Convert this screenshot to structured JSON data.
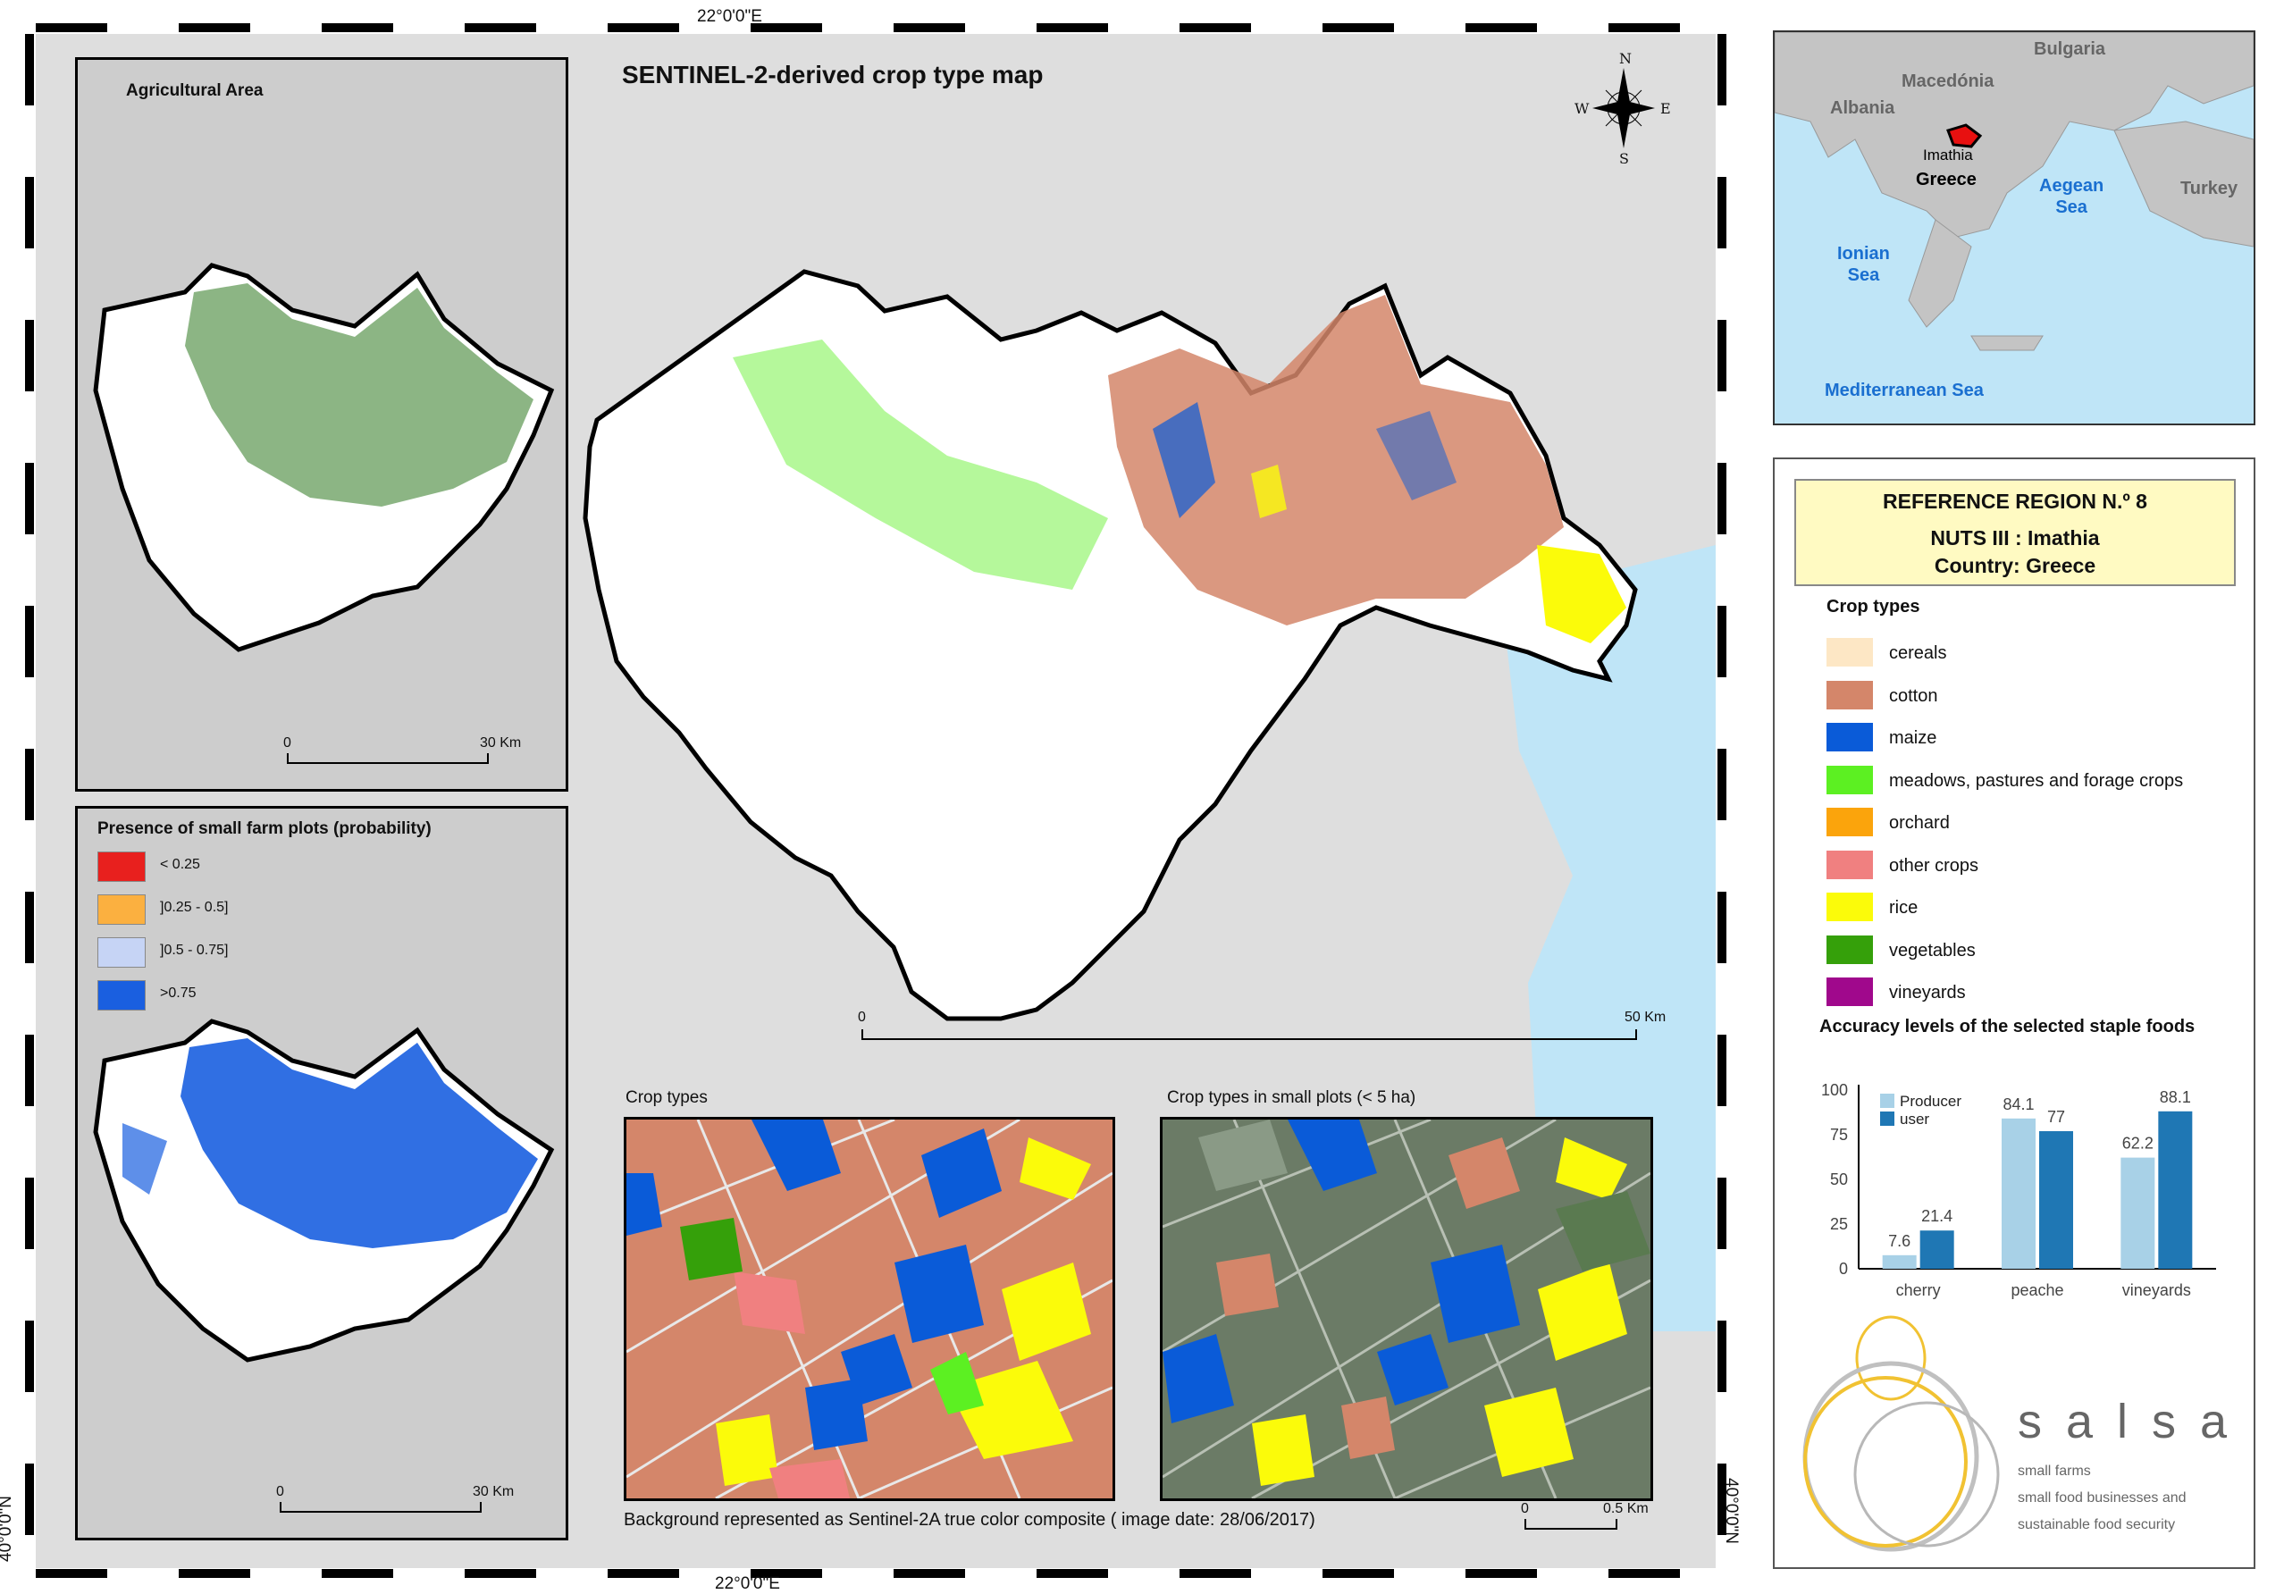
{
  "coords": {
    "top_lon": "22°0'0\"E",
    "bottom_lon": "22°0'0\"E",
    "left_lat": "40°0'0\"N",
    "right_lat": "40°0'0\"N"
  },
  "main_map": {
    "title": "SENTINEL-2-derived crop type map",
    "scale_start": "0",
    "scale_end": "50 Km"
  },
  "compass": {
    "n": "N",
    "s": "S",
    "e": "E",
    "w": "W"
  },
  "agri_panel": {
    "title": "Agricultural Area",
    "scale_start": "0",
    "scale_end": "30 Km"
  },
  "prob_panel": {
    "title": "Presence of small farm plots (probability)",
    "legend": [
      {
        "label": "< 0.25",
        "color": "#e8201e"
      },
      {
        "label": "]0.25 - 0.5]",
        "color": "#fbb040"
      },
      {
        "label": "]0.5 - 0.75]",
        "color": "#c6d4f5"
      },
      {
        "label": ">0.75",
        "color": "#1a5fe0"
      }
    ],
    "scale_start": "0",
    "scale_end": "30 Km"
  },
  "insets": {
    "left_title": "Crop types",
    "right_title": "Crop types in small plots (< 5 ha)",
    "footnote": "Background represented as Sentinel-2A true color composite ( image date: 28/06/2017)",
    "scale_start": "0",
    "scale_end": "0.5 Km"
  },
  "locator": {
    "bulgaria": "Bulgaria",
    "macedonia": "Macedónia",
    "albania": "Albania",
    "imathia": "Imathia",
    "greece": "Greece",
    "aegean": "Aegean\nSea",
    "turkey": "Turkey",
    "ionian": "Ionian\nSea",
    "med": "Mediterranean Sea"
  },
  "legend_box": {
    "line1": "REFERENCE REGION N.º 8",
    "line2": "NUTS III : Imathia",
    "line3": "Country: Greece"
  },
  "crop_types": {
    "title": "Crop types",
    "items": [
      {
        "label": "cereals",
        "color": "#fde7c5"
      },
      {
        "label": "cotton",
        "color": "#d4866a"
      },
      {
        "label": "maize",
        "color": "#0a5bd8"
      },
      {
        "label": "meadows, pastures and forage crops",
        "color": "#5cf022"
      },
      {
        "label": "orchard",
        "color": "#fba40c"
      },
      {
        "label": "other crops",
        "color": "#f08080"
      },
      {
        "label": "rice",
        "color": "#fbfb0a"
      },
      {
        "label": "vegetables",
        "color": "#35a00a"
      },
      {
        "label": "vineyards",
        "color": "#a0088c"
      }
    ]
  },
  "chart_data": {
    "type": "bar",
    "title": "Accuracy levels of the selected staple foods",
    "categories": [
      "cherry",
      "peache",
      "vineyards"
    ],
    "series": [
      {
        "name": "Producer",
        "color": "#a8d1e7",
        "values": [
          7.6,
          84.1,
          62.2
        ]
      },
      {
        "name": "user",
        "color": "#1f77b4",
        "values": [
          21.4,
          77,
          88.1
        ]
      }
    ],
    "ylim": [
      0,
      100
    ],
    "yticks": [
      "0",
      "25",
      "50",
      "75",
      "100"
    ]
  },
  "logo": {
    "name": "s a l s a",
    "line1": "small farms",
    "line2": "small food businesses and",
    "line3": "sustainable food security"
  }
}
